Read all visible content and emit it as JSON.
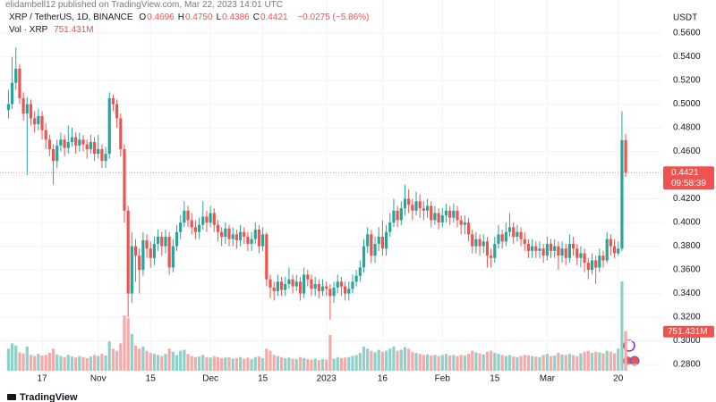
{
  "header": {
    "publisher": "elidambell12 published on TradingView.com, Mar 22, 2023 14:01 UTC",
    "symbol": "XRP / TetherUS, 1D, BINANCE",
    "ohlc": [
      {
        "key": "O",
        "value": "0.4696"
      },
      {
        "key": "H",
        "value": "0.4750"
      },
      {
        "key": "L",
        "value": "0.4386"
      },
      {
        "key": "C",
        "value": "0.4421"
      }
    ],
    "change": "−0.0275 (−5.86%)"
  },
  "footer": {
    "logo": "TradingView"
  },
  "chart_data": {
    "type": "candlestick",
    "y_axis_label": "USDT",
    "countdown": "09:58:39",
    "up_color": "#26a69a",
    "down_color": "#ef5350",
    "up_volume_color": "#8fd0c8",
    "down_volume_color": "#f7a9a7",
    "grid": true,
    "ylim": [
      0.2725,
      0.588
    ],
    "yticks": [
      {
        "value": 0.28,
        "label": "0.2800"
      },
      {
        "value": 0.3,
        "label": "0.3000"
      },
      {
        "value": 0.32,
        "label": "0.3200"
      },
      {
        "value": 0.34,
        "label": "0.3400"
      },
      {
        "value": 0.36,
        "label": "0.3600"
      },
      {
        "value": 0.38,
        "label": "0.3800"
      },
      {
        "value": 0.4,
        "label": "0.4000"
      },
      {
        "value": 0.42,
        "label": "0.4200"
      },
      {
        "value": 0.44,
        "label": "0.4400"
      },
      {
        "value": 0.46,
        "label": "0.4600"
      },
      {
        "value": 0.48,
        "label": "0.4800"
      },
      {
        "value": 0.5,
        "label": "0.5000"
      },
      {
        "value": 0.52,
        "label": "0.5200"
      },
      {
        "value": 0.54,
        "label": "0.5400"
      },
      {
        "value": 0.56,
        "label": "0.5600"
      }
    ],
    "categories": [
      null,
      null,
      null,
      null,
      null,
      null,
      null,
      null,
      null,
      "17",
      null,
      null,
      null,
      null,
      null,
      null,
      null,
      null,
      null,
      null,
      null,
      null,
      null,
      null,
      "Nov",
      null,
      null,
      null,
      null,
      null,
      null,
      null,
      null,
      null,
      null,
      null,
      null,
      null,
      "15",
      null,
      null,
      null,
      null,
      null,
      null,
      null,
      null,
      null,
      null,
      null,
      null,
      null,
      null,
      null,
      "Dec",
      null,
      null,
      null,
      null,
      null,
      null,
      null,
      null,
      null,
      null,
      null,
      null,
      null,
      "15",
      null,
      null,
      null,
      null,
      null,
      null,
      null,
      null,
      null,
      null,
      null,
      null,
      null,
      null,
      null,
      null,
      "2023",
      null,
      null,
      null,
      null,
      null,
      null,
      null,
      null,
      null,
      null,
      null,
      null,
      null,
      null,
      "16",
      null,
      null,
      null,
      null,
      null,
      null,
      null,
      null,
      null,
      null,
      null,
      null,
      null,
      null,
      null,
      "Feb",
      null,
      null,
      null,
      null,
      null,
      null,
      null,
      null,
      null,
      null,
      null,
      null,
      null,
      "15",
      null,
      null,
      null,
      null,
      null,
      null,
      null,
      null,
      null,
      null,
      null,
      null,
      null,
      "Mar",
      null,
      null,
      null,
      null,
      null,
      null,
      null,
      null,
      null,
      null,
      null,
      null,
      null,
      null,
      null,
      null,
      null,
      null,
      "20",
      null,
      null
    ],
    "open": [
      0.495,
      0.5,
      0.518,
      0.53,
      0.505,
      0.492,
      0.5,
      0.488,
      0.483,
      0.49,
      0.478,
      0.47,
      0.462,
      0.452,
      0.465,
      0.47,
      0.463,
      0.468,
      0.472,
      0.465,
      0.47,
      0.466,
      0.462,
      0.468,
      0.458,
      0.462,
      0.452,
      0.458,
      0.505,
      0.5,
      0.488,
      0.462,
      0.41,
      0.34,
      0.38,
      0.372,
      0.36,
      0.385,
      0.378,
      0.37,
      0.382,
      0.388,
      0.38,
      0.388,
      0.362,
      0.38,
      0.392,
      0.4,
      0.41,
      0.402,
      0.396,
      0.392,
      0.398,
      0.405,
      0.4,
      0.408,
      0.398,
      0.392,
      0.388,
      0.395,
      0.386,
      0.39,
      0.385,
      0.392,
      0.388,
      0.382,
      0.386,
      0.394,
      0.38,
      0.39,
      0.352,
      0.345,
      0.342,
      0.35,
      0.343,
      0.348,
      0.352,
      0.346,
      0.35,
      0.34,
      0.356,
      0.352,
      0.344,
      0.348,
      0.342,
      0.346,
      0.344,
      0.338,
      0.345,
      0.35,
      0.346,
      0.34,
      0.344,
      0.35,
      0.355,
      0.362,
      0.38,
      0.39,
      0.372,
      0.382,
      0.388,
      0.378,
      0.392,
      0.4,
      0.41,
      0.402,
      0.412,
      0.42,
      0.415,
      0.41,
      0.418,
      0.412,
      0.41,
      0.414,
      0.402,
      0.408,
      0.4,
      0.406,
      0.41,
      0.404,
      0.41,
      0.402,
      0.398,
      0.4,
      0.39,
      0.38,
      0.386,
      0.38,
      0.384,
      0.372,
      0.37,
      0.382,
      0.39,
      0.384,
      0.392,
      0.396,
      0.388,
      0.392,
      0.386,
      0.382,
      0.376,
      0.38,
      0.376,
      0.378,
      0.372,
      0.382,
      0.376,
      0.38,
      0.372,
      0.378,
      0.37,
      0.382,
      0.378,
      0.37,
      0.374,
      0.366,
      0.36,
      0.368,
      0.362,
      0.372,
      0.368,
      0.386,
      0.38,
      0.374,
      0.378,
      0.4696
    ],
    "high": [
      0.512,
      0.54,
      0.548,
      0.534,
      0.51,
      0.506,
      0.504,
      0.494,
      0.496,
      0.494,
      0.484,
      0.474,
      0.466,
      0.47,
      0.476,
      0.474,
      0.482,
      0.48,
      0.476,
      0.476,
      0.474,
      0.47,
      0.474,
      0.472,
      0.474,
      0.466,
      0.464,
      0.51,
      0.508,
      0.504,
      0.492,
      0.466,
      0.414,
      0.392,
      0.386,
      0.378,
      0.392,
      0.39,
      0.384,
      0.388,
      0.394,
      0.392,
      0.394,
      0.392,
      0.386,
      0.398,
      0.406,
      0.418,
      0.414,
      0.408,
      0.402,
      0.404,
      0.418,
      0.41,
      0.414,
      0.412,
      0.402,
      0.396,
      0.4,
      0.398,
      0.396,
      0.394,
      0.398,
      0.396,
      0.392,
      0.392,
      0.4,
      0.398,
      0.396,
      0.392,
      0.356,
      0.35,
      0.356,
      0.354,
      0.354,
      0.362,
      0.356,
      0.356,
      0.354,
      0.362,
      0.36,
      0.356,
      0.354,
      0.352,
      0.352,
      0.35,
      0.348,
      0.35,
      0.356,
      0.354,
      0.35,
      0.35,
      0.356,
      0.36,
      0.368,
      0.386,
      0.396,
      0.394,
      0.388,
      0.396,
      0.402,
      0.398,
      0.408,
      0.42,
      0.414,
      0.418,
      0.432,
      0.428,
      0.42,
      0.426,
      0.424,
      0.418,
      0.42,
      0.418,
      0.414,
      0.412,
      0.412,
      0.416,
      0.414,
      0.416,
      0.414,
      0.406,
      0.406,
      0.404,
      0.394,
      0.392,
      0.39,
      0.39,
      0.388,
      0.378,
      0.388,
      0.398,
      0.394,
      0.4,
      0.408,
      0.4,
      0.398,
      0.396,
      0.392,
      0.386,
      0.386,
      0.384,
      0.384,
      0.382,
      0.388,
      0.386,
      0.386,
      0.384,
      0.384,
      0.382,
      0.39,
      0.388,
      0.382,
      0.38,
      0.378,
      0.37,
      0.374,
      0.372,
      0.378,
      0.376,
      0.392,
      0.39,
      0.386,
      0.384,
      0.494,
      0.475
    ],
    "low": [
      0.488,
      0.496,
      0.512,
      0.5,
      0.486,
      0.44,
      0.482,
      0.476,
      0.478,
      0.47,
      0.462,
      0.456,
      0.432,
      0.446,
      0.46,
      0.456,
      0.458,
      0.464,
      0.458,
      0.46,
      0.46,
      0.454,
      0.458,
      0.452,
      0.454,
      0.446,
      0.446,
      0.454,
      0.494,
      0.48,
      0.456,
      0.4,
      0.32,
      0.332,
      0.35,
      0.34,
      0.355,
      0.37,
      0.362,
      0.364,
      0.376,
      0.372,
      0.374,
      0.356,
      0.358,
      0.376,
      0.386,
      0.396,
      0.396,
      0.39,
      0.386,
      0.386,
      0.394,
      0.392,
      0.396,
      0.392,
      0.384,
      0.38,
      0.382,
      0.38,
      0.38,
      0.378,
      0.38,
      0.382,
      0.376,
      0.376,
      0.382,
      0.374,
      0.376,
      0.346,
      0.336,
      0.334,
      0.338,
      0.338,
      0.338,
      0.344,
      0.34,
      0.342,
      0.334,
      0.336,
      0.346,
      0.338,
      0.338,
      0.336,
      0.338,
      0.338,
      0.318,
      0.332,
      0.34,
      0.338,
      0.334,
      0.334,
      0.34,
      0.346,
      0.35,
      0.358,
      0.374,
      0.366,
      0.366,
      0.376,
      0.372,
      0.372,
      0.388,
      0.396,
      0.396,
      0.398,
      0.406,
      0.408,
      0.402,
      0.406,
      0.404,
      0.402,
      0.404,
      0.396,
      0.398,
      0.394,
      0.396,
      0.4,
      0.398,
      0.4,
      0.396,
      0.39,
      0.39,
      0.384,
      0.374,
      0.374,
      0.372,
      0.374,
      0.362,
      0.362,
      0.366,
      0.378,
      0.378,
      0.38,
      0.388,
      0.382,
      0.384,
      0.38,
      0.376,
      0.37,
      0.37,
      0.37,
      0.37,
      0.366,
      0.368,
      0.37,
      0.37,
      0.36,
      0.366,
      0.364,
      0.366,
      0.372,
      0.364,
      0.362,
      0.358,
      0.352,
      0.356,
      0.348,
      0.358,
      0.362,
      0.366,
      0.372,
      0.37,
      0.372,
      0.376,
      0.4386
    ],
    "close": [
      0.5,
      0.518,
      0.53,
      0.505,
      0.492,
      0.5,
      0.488,
      0.483,
      0.49,
      0.478,
      0.47,
      0.462,
      0.452,
      0.465,
      0.47,
      0.463,
      0.468,
      0.472,
      0.465,
      0.47,
      0.466,
      0.462,
      0.468,
      0.458,
      0.462,
      0.452,
      0.458,
      0.505,
      0.5,
      0.488,
      0.462,
      0.41,
      0.34,
      0.38,
      0.372,
      0.36,
      0.385,
      0.378,
      0.37,
      0.382,
      0.388,
      0.38,
      0.388,
      0.362,
      0.38,
      0.392,
      0.4,
      0.41,
      0.402,
      0.396,
      0.392,
      0.398,
      0.405,
      0.4,
      0.408,
      0.398,
      0.392,
      0.388,
      0.395,
      0.386,
      0.39,
      0.385,
      0.392,
      0.388,
      0.382,
      0.386,
      0.394,
      0.38,
      0.39,
      0.352,
      0.345,
      0.342,
      0.35,
      0.343,
      0.348,
      0.352,
      0.346,
      0.35,
      0.34,
      0.356,
      0.352,
      0.344,
      0.348,
      0.342,
      0.346,
      0.344,
      0.338,
      0.345,
      0.35,
      0.346,
      0.34,
      0.344,
      0.35,
      0.355,
      0.362,
      0.38,
      0.39,
      0.372,
      0.382,
      0.388,
      0.378,
      0.392,
      0.4,
      0.41,
      0.402,
      0.412,
      0.42,
      0.415,
      0.41,
      0.418,
      0.412,
      0.41,
      0.414,
      0.402,
      0.408,
      0.4,
      0.406,
      0.41,
      0.404,
      0.41,
      0.402,
      0.398,
      0.4,
      0.39,
      0.38,
      0.386,
      0.38,
      0.384,
      0.372,
      0.37,
      0.382,
      0.39,
      0.384,
      0.392,
      0.396,
      0.388,
      0.392,
      0.386,
      0.382,
      0.376,
      0.38,
      0.376,
      0.378,
      0.372,
      0.382,
      0.376,
      0.38,
      0.372,
      0.378,
      0.37,
      0.382,
      0.378,
      0.37,
      0.374,
      0.366,
      0.36,
      0.368,
      0.362,
      0.372,
      0.368,
      0.386,
      0.38,
      0.374,
      0.378,
      0.4696,
      0.4421
    ],
    "volume": {
      "name": "Vol · XRP",
      "last_value_label": "751.431M",
      "values": [
        420,
        520,
        480,
        350,
        330,
        460,
        300,
        280,
        320,
        290,
        300,
        340,
        420,
        310,
        280,
        260,
        300,
        270,
        250,
        280,
        260,
        240,
        270,
        300,
        280,
        320,
        290,
        560,
        420,
        380,
        520,
        1050,
        1000,
        700,
        480,
        420,
        460,
        380,
        340,
        320,
        300,
        280,
        320,
        420,
        360,
        300,
        380,
        400,
        320,
        280,
        260,
        270,
        300,
        260,
        250,
        280,
        260,
        240,
        250,
        260,
        230,
        240,
        260,
        230,
        250,
        220,
        260,
        270,
        240,
        420,
        380,
        300,
        280,
        260,
        240,
        250,
        230,
        220,
        260,
        240,
        220,
        210,
        230,
        200,
        220,
        210,
        680,
        230,
        260,
        240,
        250,
        260,
        280,
        300,
        340,
        460,
        420,
        380,
        350,
        400,
        360,
        380,
        420,
        460,
        380,
        400,
        450,
        420,
        360,
        340,
        320,
        300,
        310,
        290,
        300,
        280,
        300,
        320,
        290,
        300,
        280,
        300,
        290,
        320,
        380,
        350,
        330,
        310,
        360,
        380,
        340,
        320,
        300,
        280,
        300,
        270,
        260,
        280,
        300,
        290,
        280,
        270,
        260,
        300,
        320,
        280,
        290,
        340,
        310,
        300,
        320,
        300,
        280,
        330,
        360,
        380,
        340,
        360,
        350,
        330,
        380,
        360,
        330,
        420,
        1700,
        751.431
      ]
    }
  }
}
